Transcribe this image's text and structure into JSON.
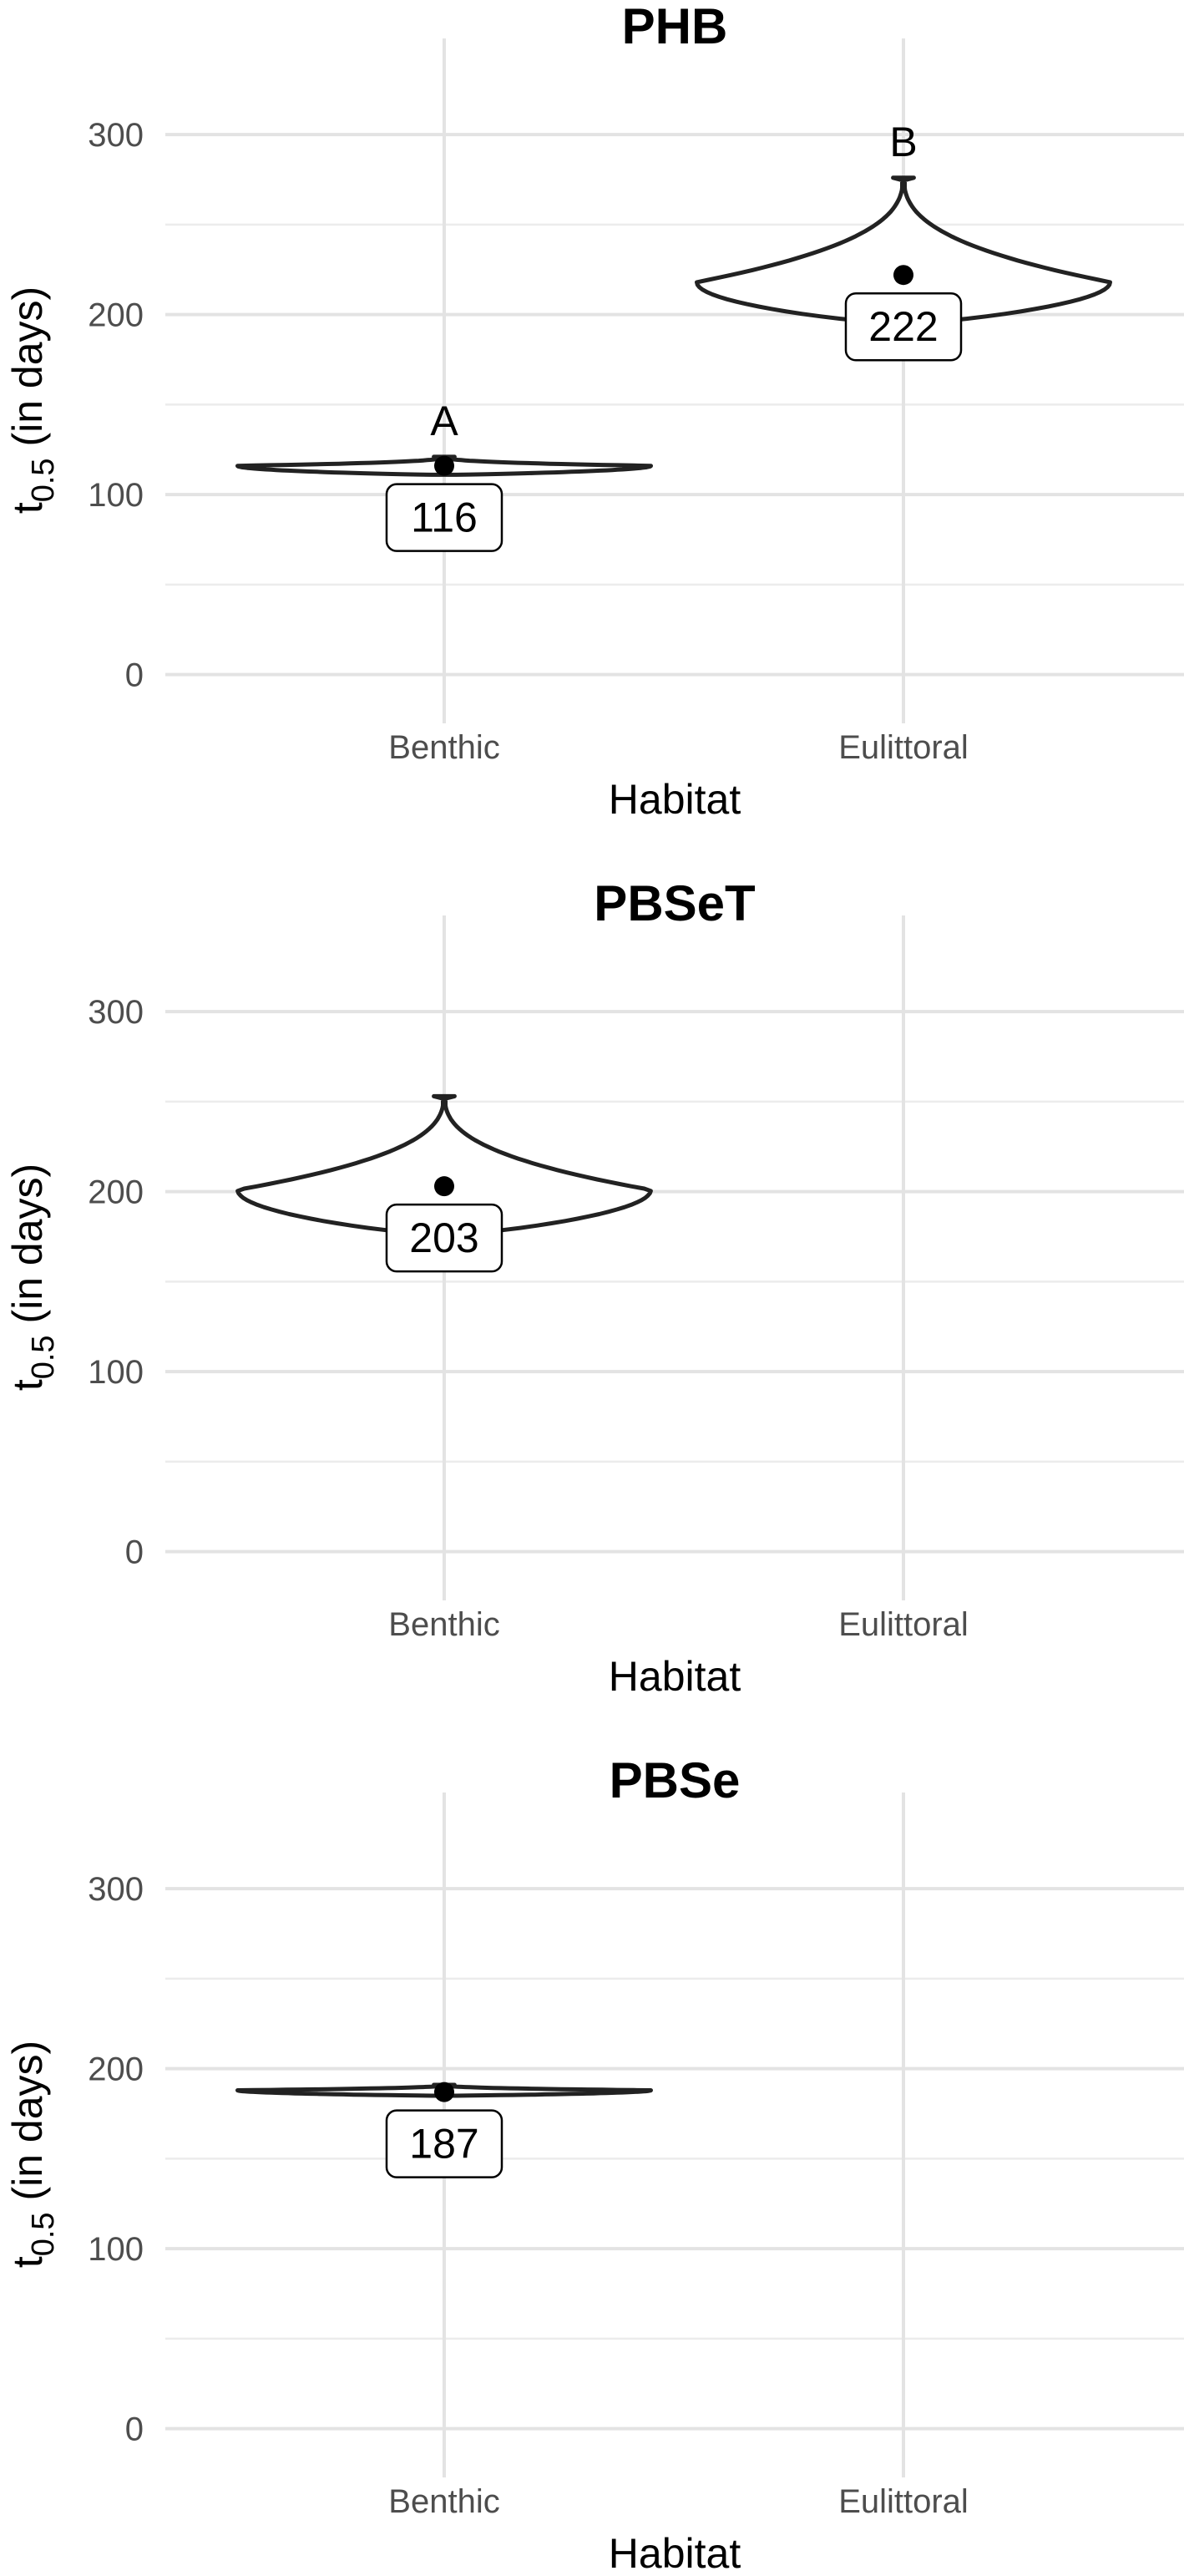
{
  "chart_data": [
    {
      "type": "violin",
      "title": "PHB",
      "xlabel": "Habitat",
      "ylabel_main": "t",
      "ylabel_sub": "0.5",
      "ylabel_rest": " (in days)",
      "categories": [
        "Benthic",
        "Eulittoral"
      ],
      "ylim": [
        -15,
        320
      ],
      "yticks": [
        0,
        100,
        200,
        300
      ],
      "grid": true,
      "violins": [
        {
          "category": "Benthic",
          "mean": 116,
          "value_label": "116",
          "letter": "A",
          "min": 111,
          "max": 121,
          "mode": 116,
          "max_halfwidth": 0.45
        },
        {
          "category": "Eulittoral",
          "mean": 222,
          "value_label": "222",
          "letter": "B",
          "min": 195,
          "max": 276,
          "mode": 218,
          "max_halfwidth": 0.45
        }
      ]
    },
    {
      "type": "violin",
      "title": "PBSeT",
      "xlabel": "Habitat",
      "ylabel_main": "t",
      "ylabel_sub": "0.5",
      "ylabel_rest": " (in days)",
      "categories": [
        "Benthic",
        "Eulittoral"
      ],
      "ylim": [
        -15,
        320
      ],
      "yticks": [
        0,
        100,
        200,
        300
      ],
      "grid": true,
      "violins": [
        {
          "category": "Benthic",
          "mean": 203,
          "value_label": "203",
          "letter": "",
          "min": 176,
          "max": 253,
          "mode": 201,
          "max_halfwidth": 0.45
        }
      ]
    },
    {
      "type": "violin",
      "title": "PBSe",
      "xlabel": "Habitat",
      "ylabel_main": "t",
      "ylabel_sub": "0.5",
      "ylabel_rest": " (in days)",
      "categories": [
        "Benthic",
        "Eulittoral"
      ],
      "ylim": [
        -15,
        320
      ],
      "yticks": [
        0,
        100,
        200,
        300
      ],
      "grid": true,
      "violins": [
        {
          "category": "Benthic",
          "mean": 187,
          "value_label": "187",
          "letter": "",
          "min": 185,
          "max": 191,
          "mode": 188,
          "max_halfwidth": 0.45
        }
      ]
    }
  ]
}
